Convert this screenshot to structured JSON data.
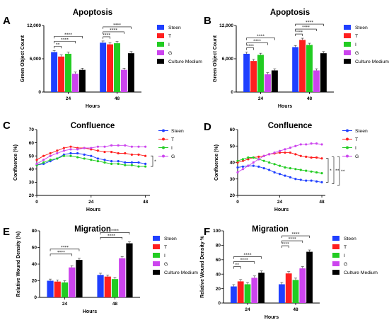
{
  "colors": {
    "Steen": "#1f3fff",
    "T": "#ff1f1f",
    "I": "#22cc22",
    "G": "#cc44ee",
    "Culture Medium": "#000000"
  },
  "chart_data": [
    {
      "id": "A",
      "type": "bar",
      "panel_label": "A",
      "title": "Apoptosis",
      "xlabel": "Hours",
      "ylabel": "Green Object Count",
      "categories": [
        "24",
        "48"
      ],
      "ylim": [
        0,
        12000
      ],
      "yticks": [
        "0",
        "6,000",
        "12,000"
      ],
      "series": [
        {
          "name": "Steen",
          "values": [
            7200,
            8900
          ]
        },
        {
          "name": "T",
          "values": [
            6400,
            8600
          ]
        },
        {
          "name": "I",
          "values": [
            6900,
            8800
          ]
        },
        {
          "name": "G",
          "values": [
            3300,
            4000
          ]
        },
        {
          "name": "Culture Medium",
          "values": [
            4000,
            7000
          ]
        }
      ],
      "legend_position": "right",
      "significance": [
        "**",
        "****",
        "****",
        "****",
        "****",
        "****"
      ]
    },
    {
      "id": "B",
      "type": "bar",
      "panel_label": "B",
      "title": "Apoptosis",
      "xlabel": "Hours",
      "ylabel": "Green Object Count",
      "categories": [
        "24",
        "48"
      ],
      "ylim": [
        0,
        12000
      ],
      "yticks": [
        "0",
        "6,000",
        "12,000"
      ],
      "series": [
        {
          "name": "Steen",
          "values": [
            6900,
            8100
          ]
        },
        {
          "name": "T",
          "values": [
            5600,
            9400
          ]
        },
        {
          "name": "I",
          "values": [
            6700,
            8500
          ]
        },
        {
          "name": "G",
          "values": [
            3200,
            3900
          ]
        },
        {
          "name": "Culture Medium",
          "values": [
            3900,
            7000
          ]
        }
      ],
      "legend_position": "right",
      "significance": [
        "****",
        "****",
        "****",
        "****",
        "****",
        "****"
      ]
    },
    {
      "id": "C",
      "type": "line",
      "panel_label": "C",
      "title": "Confluence",
      "xlabel": "Hours",
      "ylabel": "Confluence (%)",
      "xlim": [
        0,
        50
      ],
      "xticks": [
        0,
        24,
        48
      ],
      "ylim": [
        20,
        70
      ],
      "yticks": [
        "20",
        "30",
        "40",
        "50",
        "60",
        "70"
      ],
      "x": [
        0,
        3,
        6,
        9,
        12,
        15,
        18,
        21,
        24,
        27,
        30,
        33,
        36,
        39,
        42,
        45,
        48
      ],
      "series": [
        {
          "name": "Steen",
          "values": [
            43,
            44,
            46,
            48,
            51,
            52,
            52,
            51,
            50,
            48,
            47,
            46,
            46,
            45,
            45,
            45,
            44
          ]
        },
        {
          "name": "T",
          "values": [
            47,
            50,
            52,
            54,
            56,
            57,
            56,
            56,
            55,
            54,
            53,
            53,
            52,
            52,
            51,
            51,
            50
          ]
        },
        {
          "name": "I",
          "values": [
            43,
            45,
            47,
            48,
            50,
            50,
            49,
            48,
            47,
            46,
            45,
            44,
            44,
            43,
            43,
            42,
            42
          ]
        },
        {
          "name": "G",
          "values": [
            44,
            47,
            50,
            52,
            54,
            55,
            55,
            56,
            56,
            57,
            57,
            58,
            58,
            58,
            57,
            57,
            57
          ]
        }
      ],
      "legend_position": "top-right",
      "significance": [
        "*"
      ]
    },
    {
      "id": "D",
      "type": "line",
      "panel_label": "D",
      "title": "Confluence",
      "xlabel": "Hours",
      "ylabel": "Confluence (%)",
      "xlim": [
        0,
        50
      ],
      "xticks": [
        0,
        24,
        48
      ],
      "ylim": [
        20,
        60
      ],
      "yticks": [
        "20",
        "30",
        "40",
        "50",
        "60"
      ],
      "x": [
        0,
        3,
        6,
        9,
        12,
        15,
        18,
        21,
        24,
        27,
        30,
        33,
        36,
        39,
        42,
        45,
        48
      ],
      "series": [
        {
          "name": "Steen",
          "values": [
            37,
            37.5,
            38,
            38,
            37.5,
            36.5,
            35.5,
            34,
            33,
            32,
            31,
            30,
            29.5,
            29,
            29,
            28.5,
            28
          ]
        },
        {
          "name": "T",
          "values": [
            40,
            41,
            42,
            43,
            43.5,
            44,
            45,
            45.5,
            46,
            46,
            46,
            45,
            44,
            43.5,
            43,
            43,
            42.5
          ]
        },
        {
          "name": "I",
          "values": [
            41,
            42,
            43,
            43,
            42,
            41,
            40,
            39,
            38,
            37,
            36.5,
            36,
            35.5,
            35,
            34.5,
            34,
            33.5
          ]
        },
        {
          "name": "G",
          "values": [
            34,
            36,
            38,
            40,
            42,
            44,
            45,
            46,
            47,
            48,
            49,
            50,
            51,
            51,
            51.5,
            51.5,
            51
          ]
        }
      ],
      "legend_position": "top-right",
      "significance": [
        "*",
        "**",
        "**"
      ]
    },
    {
      "id": "E",
      "type": "bar",
      "panel_label": "E",
      "title": "Migration",
      "xlabel": "Hours",
      "ylabel": "Relative Wound Density (%)",
      "categories": [
        "24",
        "48"
      ],
      "ylim": [
        0,
        80
      ],
      "yticks": [
        "0",
        "20",
        "40",
        "60",
        "80"
      ],
      "series": [
        {
          "name": "Steen",
          "values": [
            20,
            27
          ]
        },
        {
          "name": "T",
          "values": [
            19,
            25
          ]
        },
        {
          "name": "I",
          "values": [
            18,
            22
          ]
        },
        {
          "name": "G",
          "values": [
            36,
            47
          ]
        },
        {
          "name": "Culture Medium",
          "values": [
            45,
            65
          ]
        }
      ],
      "legend_position": "right",
      "significance": [
        "****",
        "****",
        "****",
        "****"
      ]
    },
    {
      "id": "F",
      "type": "bar",
      "panel_label": "F",
      "title": "Migration",
      "xlabel": "Hours",
      "ylabel": "Relative Wound Density %",
      "categories": [
        "24",
        "48"
      ],
      "ylim": [
        0,
        100
      ],
      "yticks": [
        "0",
        "20",
        "40",
        "60",
        "80",
        "100"
      ],
      "series": [
        {
          "name": "Steen",
          "values": [
            23,
            26
          ]
        },
        {
          "name": "T",
          "values": [
            30,
            41
          ]
        },
        {
          "name": "I",
          "values": [
            26,
            32
          ]
        },
        {
          "name": "G",
          "values": [
            35,
            48
          ]
        },
        {
          "name": "Culture Medium",
          "values": [
            42,
            71
          ]
        }
      ],
      "legend_position": "right",
      "significance": [
        "**",
        "****",
        "****",
        "****",
        "****",
        "****"
      ]
    }
  ]
}
